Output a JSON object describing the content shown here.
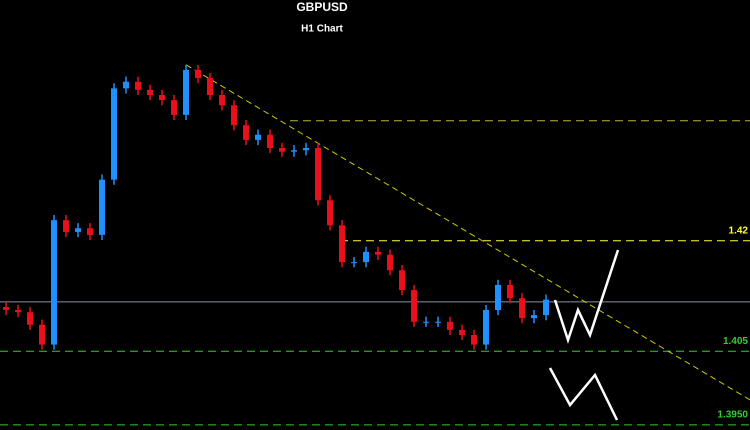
{
  "chart_data": {
    "type": "candlestick",
    "title": "GBPUSD",
    "subtitle": "H1 Chart",
    "up_color": "#1e90ff",
    "down_color": "#e8101a",
    "open": [
      1.411,
      1.4106,
      1.4103,
      1.4086,
      1.4059,
      1.4228,
      1.4212,
      1.4217,
      1.4208,
      1.4283,
      1.4407,
      1.4416,
      1.4405,
      1.4398,
      1.4391,
      1.4371,
      1.4432,
      1.4421,
      1.4398,
      1.4384,
      1.4357,
      1.4337,
      1.4344,
      1.4326,
      1.4321,
      1.4323,
      1.4326,
      1.4255,
      1.4221,
      1.4171,
      1.4171,
      1.4185,
      1.4181,
      1.416,
      1.4133,
      1.409,
      1.409,
      1.409,
      1.4079,
      1.4072,
      1.4059,
      1.4106,
      1.414,
      1.4122,
      1.4095,
      1.4099
    ],
    "high": [
      1.4117,
      1.4113,
      1.411,
      1.4093,
      1.4235,
      1.4235,
      1.4224,
      1.4224,
      1.429,
      1.4414,
      1.4423,
      1.4423,
      1.4412,
      1.4405,
      1.4398,
      1.4439,
      1.4439,
      1.4428,
      1.4405,
      1.4391,
      1.4364,
      1.4351,
      1.4351,
      1.4333,
      1.433,
      1.4333,
      1.4333,
      1.4262,
      1.4228,
      1.4178,
      1.4192,
      1.4192,
      1.4188,
      1.4167,
      1.414,
      1.4097,
      1.4097,
      1.4097,
      1.4086,
      1.4079,
      1.4113,
      1.4147,
      1.4147,
      1.4129,
      1.4106,
      1.4127
    ],
    "low": [
      1.4099,
      1.4096,
      1.4079,
      1.4052,
      1.4052,
      1.4205,
      1.4205,
      1.4201,
      1.4201,
      1.4276,
      1.44,
      1.4398,
      1.4391,
      1.4384,
      1.4364,
      1.4364,
      1.4414,
      1.4391,
      1.4377,
      1.435,
      1.433,
      1.433,
      1.4319,
      1.4314,
      1.4314,
      1.4316,
      1.4248,
      1.4214,
      1.4164,
      1.4164,
      1.4164,
      1.4174,
      1.4153,
      1.4126,
      1.4083,
      1.4083,
      1.4083,
      1.4072,
      1.4065,
      1.4052,
      1.4052,
      1.4099,
      1.4115,
      1.4088,
      1.4088,
      1.4092
    ],
    "close": [
      1.4106,
      1.4103,
      1.4086,
      1.4059,
      1.4228,
      1.4212,
      1.4217,
      1.4208,
      1.4283,
      1.4407,
      1.4416,
      1.4405,
      1.4398,
      1.4391,
      1.4371,
      1.4432,
      1.4421,
      1.4398,
      1.4384,
      1.4357,
      1.4337,
      1.4344,
      1.4326,
      1.4321,
      1.4323,
      1.4326,
      1.4255,
      1.4221,
      1.4171,
      1.4171,
      1.4185,
      1.4181,
      1.416,
      1.4133,
      1.409,
      1.409,
      1.409,
      1.4079,
      1.4072,
      1.4059,
      1.4106,
      1.414,
      1.4122,
      1.4095,
      1.4099,
      1.412
    ],
    "ylim": [
      1.3943,
      1.4527
    ],
    "levels": [
      {
        "value": 1.4363,
        "color": "#b8b830"
      },
      {
        "value": 1.42,
        "label": "1.42",
        "color": "#ffff33"
      },
      {
        "value": 1.405,
        "label": "1.405",
        "color": "#33cc33"
      },
      {
        "value": 1.395,
        "label": "1.3950",
        "color": "#33cc33"
      }
    ],
    "current_price": 1.4117,
    "trendline": {
      "from": [
        15,
        1.4439
      ],
      "to": [
        62,
        1.3984
      ],
      "color": "#cccc00"
    }
  }
}
